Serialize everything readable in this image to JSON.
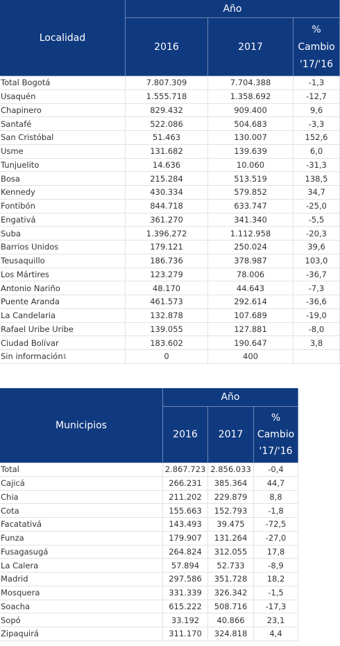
{
  "table1": {
    "header": {
      "corner": "Localidad",
      "group": "Año",
      "years": [
        "2016",
        "2017"
      ],
      "change": [
        "%",
        "Cambio",
        "'17/'16"
      ]
    },
    "rows": [
      [
        "Total Bogotá",
        "7.807.309",
        "7.704.388",
        "-1,3"
      ],
      [
        "Usaquén",
        "1.555.718",
        "1.358.692",
        "-12,7"
      ],
      [
        "Chapinero",
        "829.432",
        "909.400",
        "9,6"
      ],
      [
        "Santafé",
        "522.086",
        "504.683",
        "-3,3"
      ],
      [
        "San Cristóbal",
        "51.463",
        "130.007",
        "152,6"
      ],
      [
        "Usme",
        "131.682",
        "139.639",
        "6,0"
      ],
      [
        "Tunjuelito",
        "14.636",
        "10.060",
        "-31,3"
      ],
      [
        "Bosa",
        "215.284",
        "513.519",
        "138,5"
      ],
      [
        "Kennedy",
        "430.334",
        "579.852",
        "34,7"
      ],
      [
        "Fontibón",
        "844.718",
        "633.747",
        "-25,0"
      ],
      [
        "Engativá",
        "361.270",
        "341.340",
        "-5,5"
      ],
      [
        "Suba",
        "1.396.272",
        "1.112.958",
        "-20,3"
      ],
      [
        "Barrios Unidos",
        "179.121",
        "250.024",
        "39,6"
      ],
      [
        "Teusaquillo",
        "186.736",
        "378.987",
        "103,0"
      ],
      [
        "Los Mártires",
        "123.279",
        "78.006",
        "-36,7"
      ],
      [
        "Antonio Nariño",
        "48.170",
        "44.643",
        "-7,3"
      ],
      [
        "Puente Aranda",
        "461.573",
        "292.614",
        "-36,6"
      ],
      [
        "La Candelaria",
        "132.878",
        "107.689",
        "-19,0"
      ],
      [
        "Rafael Uribe Uribe",
        "139.055",
        "127.881",
        "-8,0"
      ],
      [
        "Ciudad Bolívar",
        "183.602",
        "190.647",
        "3,8"
      ],
      [
        "Sin información",
        "0",
        "400"
      ]
    ],
    "footnote_mark": "1"
  },
  "table2": {
    "header": {
      "corner": "Municipios",
      "group": "Año",
      "years": [
        "2016",
        "2017"
      ],
      "change": [
        "%",
        "Cambio",
        "'17/'16"
      ]
    },
    "rows": [
      [
        "Total",
        "2.867.723",
        "2.856.033",
        "-0,4"
      ],
      [
        "Cajicá",
        "266.231",
        "385.364",
        "44,7"
      ],
      [
        "Chia",
        "211.202",
        "229.879",
        "8,8"
      ],
      [
        "Cota",
        "155.663",
        "152.793",
        "-1,8"
      ],
      [
        "Facatativá",
        "143.493",
        "39.475",
        "-72,5"
      ],
      [
        "Funza",
        "179.907",
        "131.264",
        "-27,0"
      ],
      [
        "Fusagasugá",
        "264.824",
        "312.055",
        "17,8"
      ],
      [
        "La Calera",
        "57.894",
        "52.733",
        "-8,9"
      ],
      [
        "Madrid",
        "297.586",
        "351.728",
        "18,2"
      ],
      [
        "Mosquera",
        "331.339",
        "326.342",
        "-1,5"
      ],
      [
        "Soacha",
        "615.222",
        "508.716",
        "-17,3"
      ],
      [
        "Sopó",
        "33.192",
        "40.866",
        "23,1"
      ],
      [
        "Zipaquirá",
        "311.170",
        "324.818",
        "4,4"
      ]
    ]
  }
}
